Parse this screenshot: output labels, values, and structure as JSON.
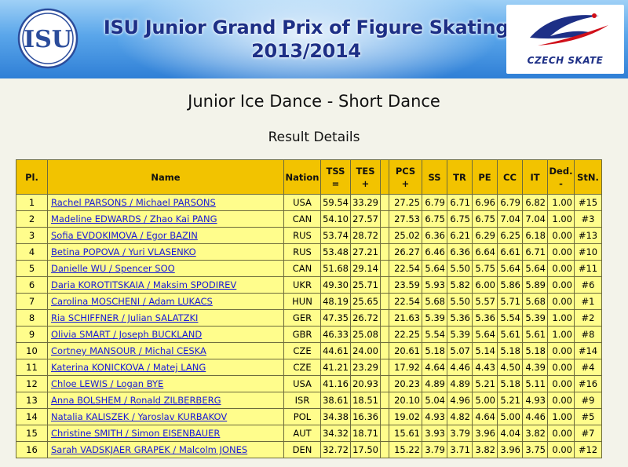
{
  "header": {
    "title_line1": "ISU Junior Grand Prix of Figure Skating",
    "title_line2": "2013/2014",
    "left_logo_text": "ISU",
    "right_logo_text": "CZECH SKATE",
    "colors": {
      "banner_top": "#9fd0f6",
      "banner_bottom": "#2f7fd6",
      "title": "#1d2f86"
    }
  },
  "event_title": "Junior Ice Dance - Short Dance",
  "section_title": "Result Details",
  "table": {
    "columns": [
      {
        "key": "pl",
        "label": "Pl.",
        "sub": ""
      },
      {
        "key": "name",
        "label": "Name",
        "sub": ""
      },
      {
        "key": "nation",
        "label": "Nation",
        "sub": ""
      },
      {
        "key": "tss",
        "label": "TSS",
        "sub": "="
      },
      {
        "key": "tes",
        "label": "TES",
        "sub": "+"
      },
      {
        "key": "blank",
        "label": "",
        "sub": ""
      },
      {
        "key": "pcs",
        "label": "PCS",
        "sub": "+"
      },
      {
        "key": "ss",
        "label": "SS",
        "sub": ""
      },
      {
        "key": "tr",
        "label": "TR",
        "sub": ""
      },
      {
        "key": "pe",
        "label": "PE",
        "sub": ""
      },
      {
        "key": "cc",
        "label": "CC",
        "sub": ""
      },
      {
        "key": "it",
        "label": "IT",
        "sub": ""
      },
      {
        "key": "ded",
        "label": "Ded.",
        "sub": "-"
      },
      {
        "key": "stn",
        "label": "StN.",
        "sub": ""
      }
    ],
    "rows": [
      {
        "pl": "1",
        "name": "Rachel PARSONS / Michael PARSONS",
        "nation": "USA",
        "tss": "59.54",
        "tes": "33.29",
        "pcs": "27.25",
        "ss": "6.79",
        "tr": "6.71",
        "pe": "6.96",
        "cc": "6.79",
        "it": "6.82",
        "ded": "1.00",
        "stn": "#15"
      },
      {
        "pl": "2",
        "name": "Madeline EDWARDS / Zhao Kai PANG",
        "nation": "CAN",
        "tss": "54.10",
        "tes": "27.57",
        "pcs": "27.53",
        "ss": "6.75",
        "tr": "6.75",
        "pe": "6.75",
        "cc": "7.04",
        "it": "7.04",
        "ded": "1.00",
        "stn": "#3"
      },
      {
        "pl": "3",
        "name": "Sofia EVDOKIMOVA / Egor BAZIN",
        "nation": "RUS",
        "tss": "53.74",
        "tes": "28.72",
        "pcs": "25.02",
        "ss": "6.36",
        "tr": "6.21",
        "pe": "6.29",
        "cc": "6.25",
        "it": "6.18",
        "ded": "0.00",
        "stn": "#13"
      },
      {
        "pl": "4",
        "name": "Betina POPOVA / Yuri VLASENKO",
        "nation": "RUS",
        "tss": "53.48",
        "tes": "27.21",
        "pcs": "26.27",
        "ss": "6.46",
        "tr": "6.36",
        "pe": "6.64",
        "cc": "6.61",
        "it": "6.71",
        "ded": "0.00",
        "stn": "#10"
      },
      {
        "pl": "5",
        "name": "Danielle WU / Spencer SOO",
        "nation": "CAN",
        "tss": "51.68",
        "tes": "29.14",
        "pcs": "22.54",
        "ss": "5.64",
        "tr": "5.50",
        "pe": "5.75",
        "cc": "5.64",
        "it": "5.64",
        "ded": "0.00",
        "stn": "#11"
      },
      {
        "pl": "6",
        "name": "Daria KOROTITSKAIA / Maksim SPODIREV",
        "nation": "UKR",
        "tss": "49.30",
        "tes": "25.71",
        "pcs": "23.59",
        "ss": "5.93",
        "tr": "5.82",
        "pe": "6.00",
        "cc": "5.86",
        "it": "5.89",
        "ded": "0.00",
        "stn": "#6"
      },
      {
        "pl": "7",
        "name": "Carolina MOSCHENI / Adam LUKACS",
        "nation": "HUN",
        "tss": "48.19",
        "tes": "25.65",
        "pcs": "22.54",
        "ss": "5.68",
        "tr": "5.50",
        "pe": "5.57",
        "cc": "5.71",
        "it": "5.68",
        "ded": "0.00",
        "stn": "#1"
      },
      {
        "pl": "8",
        "name": "Ria SCHIFFNER / Julian SALATZKI",
        "nation": "GER",
        "tss": "47.35",
        "tes": "26.72",
        "pcs": "21.63",
        "ss": "5.39",
        "tr": "5.36",
        "pe": "5.36",
        "cc": "5.54",
        "it": "5.39",
        "ded": "1.00",
        "stn": "#2"
      },
      {
        "pl": "9",
        "name": "Olivia SMART / Joseph BUCKLAND",
        "nation": "GBR",
        "tss": "46.33",
        "tes": "25.08",
        "pcs": "22.25",
        "ss": "5.54",
        "tr": "5.39",
        "pe": "5.64",
        "cc": "5.61",
        "it": "5.61",
        "ded": "1.00",
        "stn": "#8"
      },
      {
        "pl": "10",
        "name": "Cortney MANSOUR / Michal CESKA",
        "nation": "CZE",
        "tss": "44.61",
        "tes": "24.00",
        "pcs": "20.61",
        "ss": "5.18",
        "tr": "5.07",
        "pe": "5.14",
        "cc": "5.18",
        "it": "5.18",
        "ded": "0.00",
        "stn": "#14"
      },
      {
        "pl": "11",
        "name": "Katerina KONICKOVA / Matej LANG",
        "nation": "CZE",
        "tss": "41.21",
        "tes": "23.29",
        "pcs": "17.92",
        "ss": "4.64",
        "tr": "4.46",
        "pe": "4.43",
        "cc": "4.50",
        "it": "4.39",
        "ded": "0.00",
        "stn": "#4"
      },
      {
        "pl": "12",
        "name": "Chloe LEWIS / Logan BYE",
        "nation": "USA",
        "tss": "41.16",
        "tes": "20.93",
        "pcs": "20.23",
        "ss": "4.89",
        "tr": "4.89",
        "pe": "5.21",
        "cc": "5.18",
        "it": "5.11",
        "ded": "0.00",
        "stn": "#16"
      },
      {
        "pl": "13",
        "name": "Anna BOLSHEM / Ronald ZILBERBERG",
        "nation": "ISR",
        "tss": "38.61",
        "tes": "18.51",
        "pcs": "20.10",
        "ss": "5.04",
        "tr": "4.96",
        "pe": "5.00",
        "cc": "5.21",
        "it": "4.93",
        "ded": "0.00",
        "stn": "#9"
      },
      {
        "pl": "14",
        "name": "Natalia KALISZEK / Yaroslav KURBAKOV",
        "nation": "POL",
        "tss": "34.38",
        "tes": "16.36",
        "pcs": "19.02",
        "ss": "4.93",
        "tr": "4.82",
        "pe": "4.64",
        "cc": "5.00",
        "it": "4.46",
        "ded": "1.00",
        "stn": "#5"
      },
      {
        "pl": "15",
        "name": "Christine SMITH / Simon EISENBAUER",
        "nation": "AUT",
        "tss": "34.32",
        "tes": "18.71",
        "pcs": "15.61",
        "ss": "3.93",
        "tr": "3.79",
        "pe": "3.96",
        "cc": "4.04",
        "it": "3.82",
        "ded": "0.00",
        "stn": "#7"
      },
      {
        "pl": "16",
        "name": "Sarah VADSKJAER GRAPEK / Malcolm JONES",
        "nation": "DEN",
        "tss": "32.72",
        "tes": "17.50",
        "pcs": "15.22",
        "ss": "3.79",
        "tr": "3.71",
        "pe": "3.82",
        "cc": "3.96",
        "it": "3.75",
        "ded": "0.00",
        "stn": "#12"
      }
    ],
    "colors": {
      "header_bg": "#f2c300",
      "row_bg": "#fffd8c",
      "link": "#1a1ad6"
    }
  }
}
